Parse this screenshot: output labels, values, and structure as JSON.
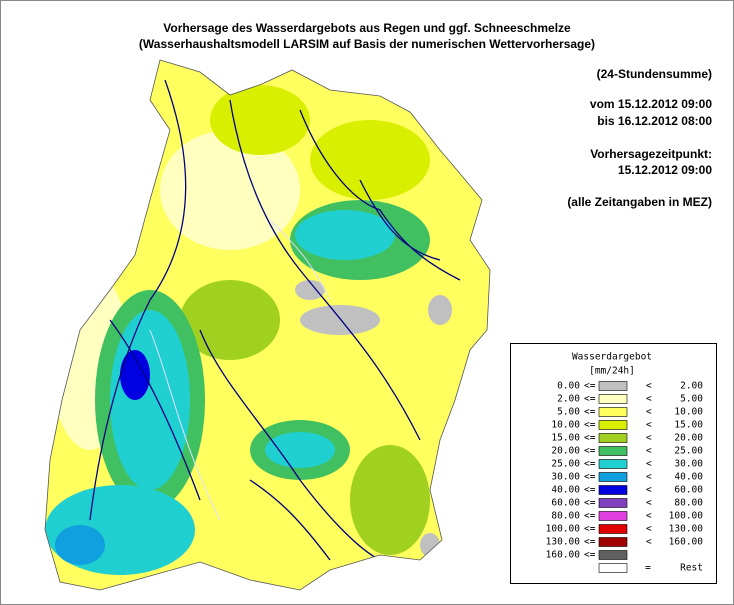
{
  "header": {
    "title_lines": [
      "Vorhersage des Wasserdargebots aus Regen und ggf. Schneeschmelze",
      "(Wasserhaushaltsmodell LARSIM auf Basis der numerischen Wettervorhersage)"
    ]
  },
  "info": {
    "sum": "(24-Stundensumme)",
    "from": "vom 15.12.2012 09:00",
    "to": "bis 16.12.2012 08:00",
    "forecast_label": "Vorhersagezeitpunkt:",
    "forecast_time": "15.12.2012 09:00",
    "note": "(alle Zeitangaben in MEZ)"
  },
  "legend": {
    "title": "Wasserdargebot",
    "unit": "[mm/24h]",
    "classes": [
      {
        "low": "0.00",
        "op1": "<=",
        "op2": "<",
        "high": "2.00",
        "color": "#c0c0c0"
      },
      {
        "low": "2.00",
        "op1": "<=",
        "op2": "<",
        "high": "5.00",
        "color": "#ffffc0"
      },
      {
        "low": "5.00",
        "op1": "<=",
        "op2": "<",
        "high": "10.00",
        "color": "#ffff60"
      },
      {
        "low": "10.00",
        "op1": "<=",
        "op2": "<",
        "high": "15.00",
        "color": "#d8f000"
      },
      {
        "low": "15.00",
        "op1": "<=",
        "op2": "<",
        "high": "20.00",
        "color": "#a0d020"
      },
      {
        "low": "20.00",
        "op1": "<=",
        "op2": "<",
        "high": "25.00",
        "color": "#40c060"
      },
      {
        "low": "25.00",
        "op1": "<=",
        "op2": "<",
        "high": "30.00",
        "color": "#20d0d0"
      },
      {
        "low": "30.00",
        "op1": "<=",
        "op2": "<",
        "high": "40.00",
        "color": "#10a0e0"
      },
      {
        "low": "40.00",
        "op1": "<=",
        "op2": "<",
        "high": "60.00",
        "color": "#0000e0"
      },
      {
        "low": "60.00",
        "op1": "<=",
        "op2": "<",
        "high": "80.00",
        "color": "#8040c0"
      },
      {
        "low": "80.00",
        "op1": "<=",
        "op2": "<",
        "high": "100.00",
        "color": "#e040e0"
      },
      {
        "low": "100.00",
        "op1": "<=",
        "op2": "<",
        "high": "130.00",
        "color": "#e00000"
      },
      {
        "low": "130.00",
        "op1": "<=",
        "op2": "<",
        "high": "160.00",
        "color": "#a00000"
      },
      {
        "low": "160.00",
        "op1": "<=",
        "color": "#606060"
      }
    ],
    "rest": {
      "eq": "=",
      "label": "Rest",
      "color": "#ffffff"
    }
  }
}
